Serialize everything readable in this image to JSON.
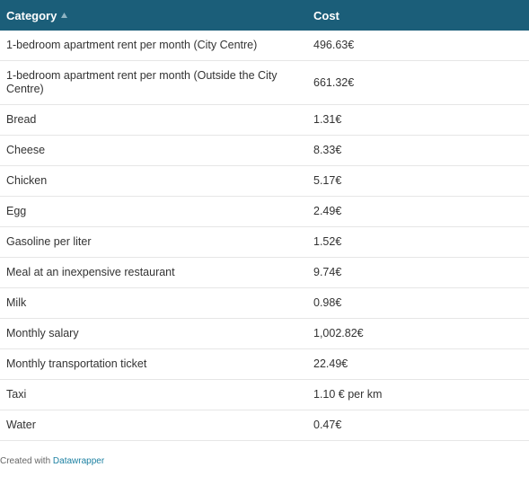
{
  "table": {
    "columns": [
      "Category",
      "Cost"
    ],
    "rows": [
      [
        "1-bedroom apartment rent per month (City Centre)",
        "496.63€"
      ],
      [
        "1-bedroom apartment rent per month (Outside the City Centre)",
        "661.32€"
      ],
      [
        "Bread",
        "1.31€"
      ],
      [
        "Cheese",
        "8.33€"
      ],
      [
        "Chicken",
        "5.17€"
      ],
      [
        "Egg",
        "2.49€"
      ],
      [
        "Gasoline per liter",
        "1.52€"
      ],
      [
        "Meal at an inexpensive restaurant",
        "9.74€"
      ],
      [
        "Milk",
        "0.98€"
      ],
      [
        "Monthly salary",
        "1,002.82€"
      ],
      [
        "Monthly transportation ticket",
        "22.49€"
      ],
      [
        "Taxi",
        "1.10 € per km"
      ],
      [
        "Water",
        "0.47€"
      ]
    ]
  },
  "footer": {
    "text": "Created with",
    "link": "Datawrapper"
  }
}
